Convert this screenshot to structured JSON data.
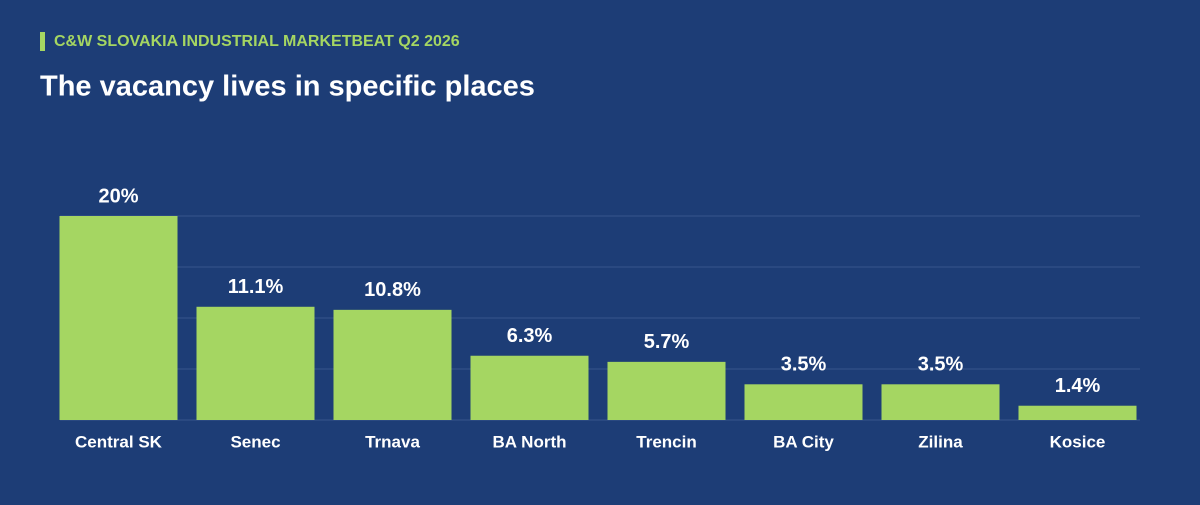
{
  "chart_data": {
    "type": "bar",
    "kicker": "C&W SLOVAKIA INDUSTRIAL MARKETBEAT Q2 2026",
    "title": "The vacancy lives in specific places",
    "categories": [
      "Central SK",
      "Senec",
      "Trnava",
      "BA North",
      "Trencin",
      "BA City",
      "Zilina",
      "Kosice"
    ],
    "values": [
      20,
      11.1,
      10.8,
      6.3,
      5.7,
      3.5,
      3.5,
      1.4
    ],
    "value_labels": [
      "20%",
      "11.1%",
      "10.8%",
      "6.3%",
      "5.7%",
      "3.5%",
      "3.5%",
      "1.4%"
    ],
    "color": "#a5d662",
    "ylim": [
      0,
      20
    ],
    "yticks": [
      0,
      5,
      10,
      15,
      20
    ],
    "grid": true
  }
}
